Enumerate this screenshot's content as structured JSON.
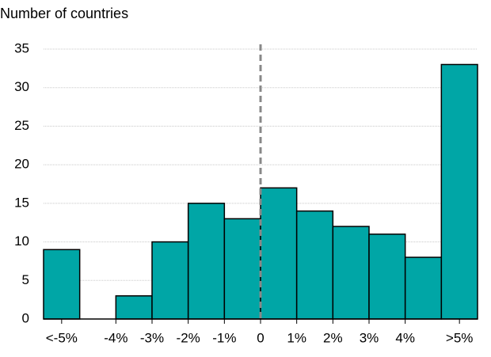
{
  "chart_data": {
    "type": "histogram",
    "title": "Number of countries",
    "bins": [
      -6,
      -5,
      -4,
      -3,
      -2,
      -1,
      0,
      1,
      2,
      3,
      4,
      5,
      6
    ],
    "values": [
      9,
      0,
      3,
      10,
      15,
      13,
      17,
      14,
      12,
      11,
      8,
      33
    ],
    "color": "#00a6a6",
    "xlim": [
      -6,
      6
    ],
    "xticks": [
      {
        "value": -5.5,
        "label": "<-5%"
      },
      {
        "value": -4,
        "label": "-4%"
      },
      {
        "value": -3,
        "label": "-3%"
      },
      {
        "value": -2,
        "label": "-2%"
      },
      {
        "value": -1,
        "label": "-1%"
      },
      0,
      {
        "value": 1,
        "label": "1%"
      },
      {
        "value": 2,
        "label": "2%"
      },
      {
        "value": 3,
        "label": "3%"
      },
      {
        "value": 4,
        "label": "4%"
      },
      {
        "value": 5.5,
        "label": ">5%"
      }
    ],
    "ylim": [
      0,
      35
    ],
    "yticks": [
      0,
      5,
      10,
      15,
      20,
      25,
      30,
      35
    ],
    "grid": true,
    "vline": 0
  }
}
